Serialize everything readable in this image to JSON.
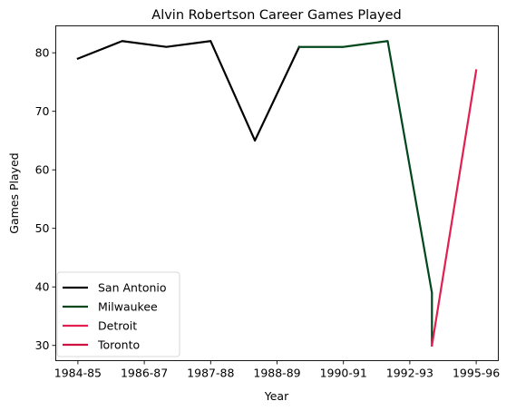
{
  "chart_data": {
    "type": "line",
    "title": "Alvin Robertson Career Games Played",
    "xlabel": "Year",
    "ylabel": "Games Played",
    "xticks": [
      "1984-85",
      "1986-87",
      "1987-88",
      "1988-89",
      "1990-91",
      "1992-93",
      "1995-96"
    ],
    "yticks": [
      30,
      40,
      50,
      60,
      70,
      80
    ],
    "xlim": [
      -0.5,
      9.5
    ],
    "ylim": [
      27.4,
      84.6
    ],
    "legend_position": "lower-left",
    "series": [
      {
        "name": "San Antonio",
        "color": "#000000",
        "x": [
          0,
          1,
          2,
          3,
          4,
          5
        ],
        "y": [
          79,
          82,
          81,
          82,
          65,
          81
        ]
      },
      {
        "name": "Milwaukee",
        "color": "#00471B",
        "x": [
          5,
          6,
          7,
          8,
          8
        ],
        "y": [
          81,
          81,
          82,
          39,
          30
        ]
      },
      {
        "name": "Detroit",
        "color": "#E31E50",
        "x": [
          8,
          9
        ],
        "y": [
          30,
          77
        ]
      },
      {
        "name": "Toronto",
        "color": "#CE1141",
        "x": [],
        "y": []
      }
    ]
  }
}
